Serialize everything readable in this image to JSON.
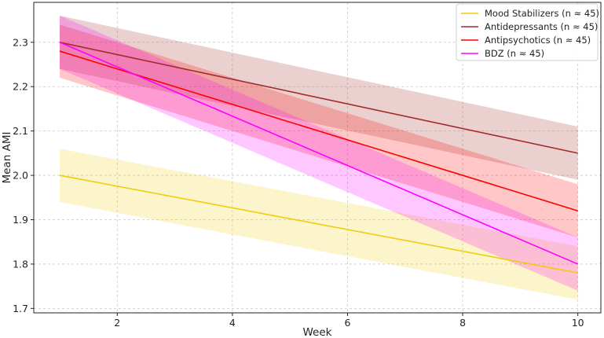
{
  "chart_data": {
    "type": "line",
    "title": "",
    "xlabel": "Week",
    "ylabel": "Mean AMI",
    "xlim": [
      0.55,
      10.4
    ],
    "ylim": [
      1.69,
      2.39
    ],
    "xticks": [
      2,
      4,
      6,
      8,
      10
    ],
    "yticks": [
      1.7,
      1.8,
      1.9,
      2.0,
      2.1,
      2.2,
      2.3
    ],
    "grid": true,
    "legend_position": "top-right",
    "x": [
      1,
      10
    ],
    "series": [
      {
        "name": "Mood Stabilizers (n ≈ 45)",
        "color": "#f2cc0c",
        "fill_opacity": 0.22,
        "values": [
          2.0,
          1.78
        ],
        "lower": [
          1.94,
          1.72
        ],
        "upper": [
          2.06,
          1.84
        ]
      },
      {
        "name": "Antidepressants (n ≈ 45)",
        "color": "#a52a2a",
        "fill_opacity": 0.22,
        "values": [
          2.3,
          2.05
        ],
        "lower": [
          2.24,
          1.99
        ],
        "upper": [
          2.36,
          2.11
        ]
      },
      {
        "name": "Antipsychotics (n ≈ 45)",
        "color": "#ff0000",
        "fill_opacity": 0.22,
        "values": [
          2.28,
          1.92
        ],
        "lower": [
          2.22,
          1.86
        ],
        "upper": [
          2.34,
          1.98
        ]
      },
      {
        "name": "BDZ (n ≈ 45)",
        "color": "#ff00ff",
        "fill_opacity": 0.22,
        "values": [
          2.3,
          1.8
        ],
        "lower": [
          2.24,
          1.74
        ],
        "upper": [
          2.36,
          1.86
        ]
      }
    ]
  }
}
